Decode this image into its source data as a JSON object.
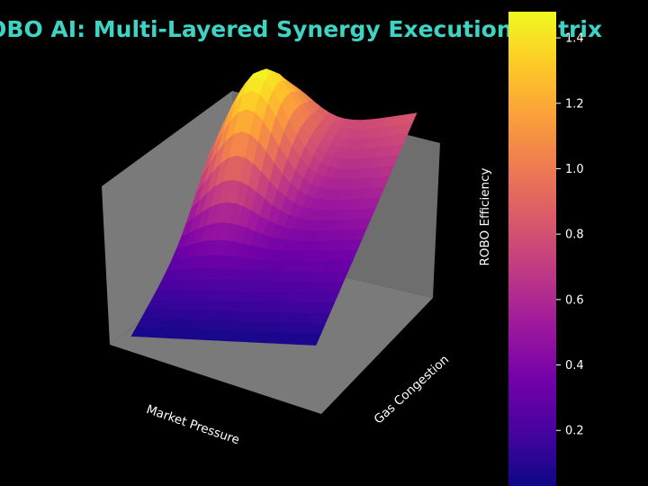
{
  "colors": {
    "background": "#000000",
    "title": "#3ed3c3",
    "pane": "#7a7a7a",
    "pane_dark": "#6e6e6e",
    "text": "#ffffff",
    "colormap": [
      "#0d0887",
      "#46039f",
      "#7201a8",
      "#9c179e",
      "#bd3786",
      "#d8576b",
      "#ed7953",
      "#fb9f3a",
      "#fdca26",
      "#f0f921"
    ]
  },
  "chart_data": {
    "type": "surface3d",
    "title": "ROBO AI: Multi-Layered Synergy Execution Matrix",
    "xlabel": "Market Pressure",
    "ylabel": "Gas Congestion",
    "colorbar": {
      "label": "ROBO Efficiency",
      "ticks": [
        "0.2",
        "0.4",
        "0.6",
        "0.8",
        "1.0",
        "1.2",
        "1.4"
      ],
      "tick_values": [
        0.2,
        0.4,
        0.6,
        0.8,
        1.0,
        1.2,
        1.4
      ],
      "range": [
        0.03,
        1.48
      ],
      "colormap": "plasma"
    },
    "grid": true,
    "surface": {
      "x_range": [
        0,
        1
      ],
      "y_range": [
        0,
        1
      ],
      "z_range": [
        0.03,
        1.48
      ],
      "description_values": {
        "peak_z": 1.48,
        "min_z": 0.03,
        "back_edge_z": 0.85
      }
    }
  }
}
